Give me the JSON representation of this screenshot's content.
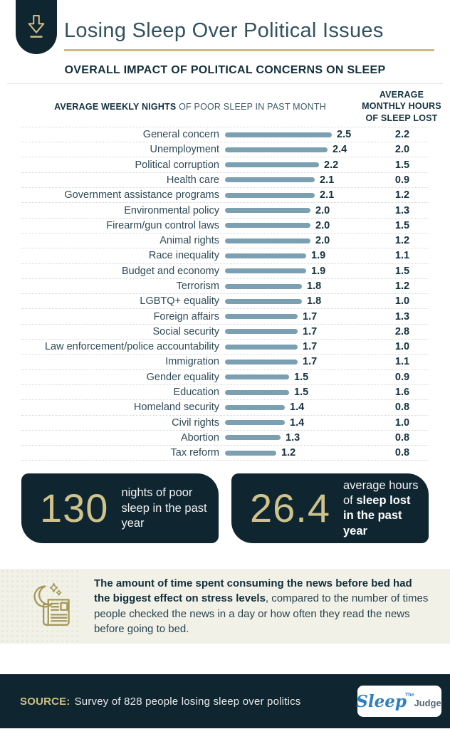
{
  "header": {
    "title": "Losing Sleep Over Political Issues"
  },
  "section": {
    "title": "OVERALL IMPACT OF POLITICAL CONCERNS ON SLEEP"
  },
  "chart_data": {
    "type": "bar",
    "orientation": "horizontal",
    "left_header_strong": "AVERAGE WEEKLY NIGHTS",
    "left_header_rest": " OF POOR SLEEP IN PAST MONTH",
    "right_header": "AVERAGE MONTHLY HOURS OF SLEEP LOST",
    "xlim": [
      0,
      2.5
    ],
    "grid": false,
    "bar_color": "#7ba0b2",
    "categories": [
      "General concern",
      "Unemployment",
      "Political corruption",
      "Health care",
      "Government assistance programs",
      "Environmental policy",
      "Firearm/gun control laws",
      "Animal rights",
      "Race inequality",
      "Budget and economy",
      "Terrorism",
      "LGBTQ+ equality",
      "Foreign affairs",
      "Social security",
      "Law enforcement/police accountability",
      "Immigration",
      "Gender equality",
      "Education",
      "Homeland security",
      "Civil rights",
      "Abortion",
      "Tax reform"
    ],
    "series": [
      {
        "name": "Average weekly nights of poor sleep in past month",
        "values": [
          2.5,
          2.4,
          2.2,
          2.1,
          2.1,
          2.0,
          2.0,
          2.0,
          1.9,
          1.9,
          1.8,
          1.8,
          1.7,
          1.7,
          1.7,
          1.7,
          1.5,
          1.5,
          1.4,
          1.4,
          1.3,
          1.2
        ]
      },
      {
        "name": "Average monthly hours of sleep lost",
        "values": [
          2.2,
          2.0,
          1.5,
          0.9,
          1.2,
          1.3,
          1.5,
          1.2,
          1.1,
          1.5,
          1.2,
          1.0,
          1.3,
          2.8,
          1.0,
          1.1,
          0.9,
          1.6,
          0.8,
          1.0,
          0.8,
          0.8
        ]
      }
    ]
  },
  "stats": [
    {
      "value": "130",
      "text_regular": "nights of poor sleep in the past year",
      "text_bold": ""
    },
    {
      "value": "26.4",
      "text_regular": "average hours of ",
      "text_bold": "sleep lost in the past year"
    }
  ],
  "note": {
    "bold": "The amount of time spent consuming the news before bed had the biggest effect on stress levels",
    "regular": ", compared to the number of times people checked the news in a day or how often they read the news before going to bed."
  },
  "footer": {
    "source_label": "SOURCE:",
    "source_text": "Survey of 828 people losing sleep over politics",
    "logo": {
      "the": "The",
      "sleep": "Sleep",
      "judge": "Judge"
    }
  },
  "icons": {
    "badge": "down-arrow-icon",
    "note": "moon-and-newspaper-icon"
  },
  "colors": {
    "navy": "#0f2631",
    "gold": "#cfc28b",
    "gold_line": "#cbbc84",
    "bar": "#7ba0b2",
    "note_bg": "#f2f1e8",
    "logo_blue": "#2e7fc0",
    "text_dark": "#14323f"
  }
}
